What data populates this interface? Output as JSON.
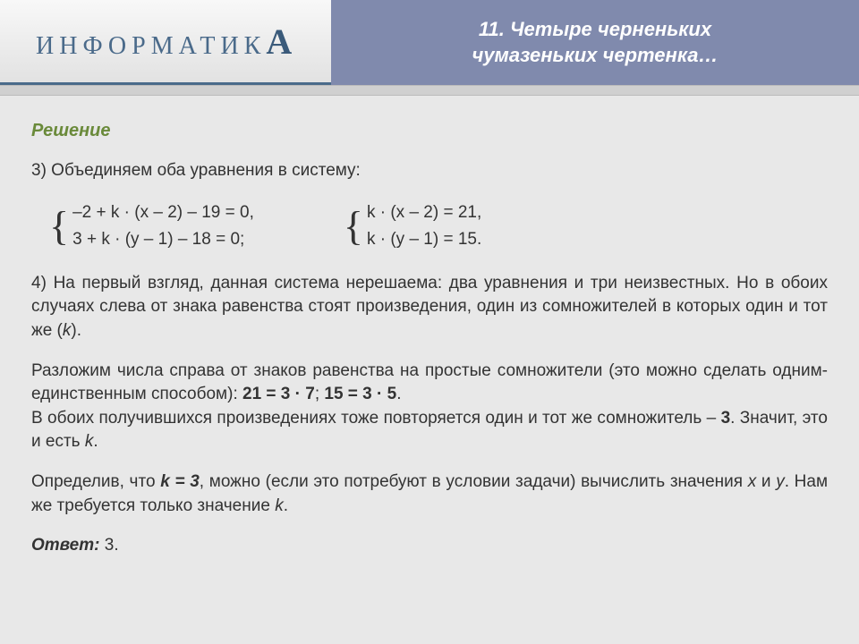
{
  "logo": {
    "prefix": "ИНФОРМАТИК",
    "suffix": "А"
  },
  "title": {
    "line1": "11. Четыре черненьких",
    "line2": "чумазеньких чертенка…"
  },
  "solution_heading": "Решение",
  "step3_intro": "3) Объединяем оба уравнения в систему:",
  "equations": {
    "left": {
      "line1": "–2 + k · (x – 2) – 19 = 0,",
      "line2": " 3 + k · (y – 1) – 18 = 0;"
    },
    "right": {
      "line1": "k · (x – 2) = 21,",
      "line2": "k · (y – 1) = 15."
    }
  },
  "step4_para1_a": "4) На первый взгляд, данная система нерешаема: два уравнения и три неизвестных. Но в обоих случаях слева от знака равенства стоят произведения, один из сомножителей в которых один и тот же (",
  "step4_para1_k": "k",
  "step4_para1_b": ").",
  "step4_para2_a": "Разложим числа справа от знаков равенства на простые сомножители (это можно сделать одним-единственным способом): ",
  "step4_para2_eq1": "21 = 3 · 7",
  "step4_para2_sep": "; ",
  "step4_para2_eq2": "15 = 3 · 5",
  "step4_para2_b": ".",
  "step4_para3_a": "В обоих получившихся произведениях тоже повторяется один и тот же сомножитель – ",
  "step4_para3_three": "3",
  "step4_para3_b": ". Значит, это и есть ",
  "step4_para3_k": "k",
  "step4_para3_c": ".",
  "step4_para4_a": "Определив, что ",
  "step4_para4_k3": "k = 3",
  "step4_para4_b": ", можно (если это потребуют в условии задачи) вычислить значения ",
  "step4_para4_x": "x",
  "step4_para4_c": " и ",
  "step4_para4_y": "y",
  "step4_para4_d": ". Нам же требуется только значение ",
  "step4_para4_k": "k",
  "step4_para4_e": ".",
  "answer_label": "Ответ:",
  "answer_value": " 3."
}
